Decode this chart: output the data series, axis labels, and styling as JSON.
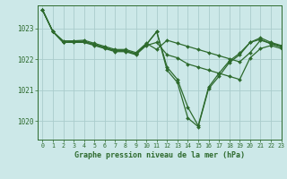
{
  "title": "Graphe pression niveau de la mer (hPa)",
  "bg_color": "#cce8e8",
  "grid_color": "#aacccc",
  "line_color": "#2d6a2d",
  "xlim": [
    -0.5,
    23
  ],
  "ylim": [
    1019.4,
    1023.75
  ],
  "yticks": [
    1020,
    1021,
    1022,
    1023
  ],
  "xticks": [
    0,
    1,
    2,
    3,
    4,
    5,
    6,
    7,
    8,
    9,
    10,
    11,
    12,
    13,
    14,
    15,
    16,
    17,
    18,
    19,
    20,
    21,
    22,
    23
  ],
  "series": [
    [
      1023.6,
      1022.9,
      1022.55,
      1022.58,
      1022.58,
      1022.48,
      1022.38,
      1022.28,
      1022.28,
      1022.18,
      1022.48,
      1022.9,
      1021.75,
      1021.35,
      1020.45,
      1019.85,
      1021.1,
      1021.55,
      1021.95,
      1022.2,
      1022.55,
      1022.7,
      1022.55,
      1022.45
    ],
    [
      1023.6,
      1022.9,
      1022.55,
      1022.58,
      1022.58,
      1022.48,
      1022.38,
      1022.28,
      1022.28,
      1022.18,
      1022.48,
      1022.9,
      1021.65,
      1021.25,
      1020.1,
      1019.82,
      1021.05,
      1021.45,
      1021.9,
      1022.15,
      1022.55,
      1022.65,
      1022.5,
      1022.4
    ],
    [
      1023.6,
      1022.9,
      1022.55,
      1022.55,
      1022.55,
      1022.45,
      1022.35,
      1022.25,
      1022.25,
      1022.15,
      1022.45,
      1022.55,
      1022.15,
      1022.05,
      1021.85,
      1021.75,
      1021.65,
      1021.55,
      1021.45,
      1021.35,
      1022.05,
      1022.35,
      1022.45,
      1022.35
    ],
    [
      1023.6,
      1022.9,
      1022.6,
      1022.6,
      1022.62,
      1022.52,
      1022.42,
      1022.32,
      1022.32,
      1022.22,
      1022.52,
      1022.32,
      1022.62,
      1022.52,
      1022.42,
      1022.32,
      1022.22,
      1022.12,
      1022.02,
      1021.92,
      1022.22,
      1022.62,
      1022.52,
      1022.42
    ]
  ]
}
